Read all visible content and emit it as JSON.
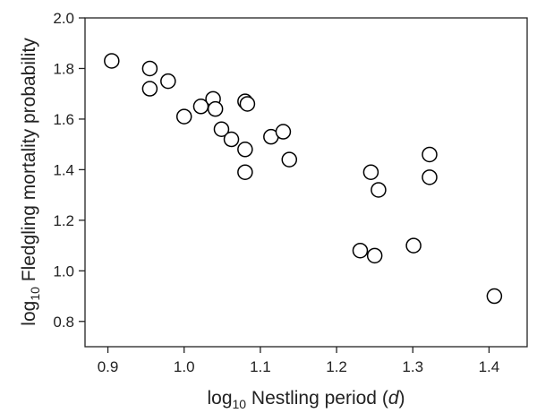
{
  "chart_data": {
    "type": "scatter",
    "xlabel": {
      "prefix": "log",
      "subscript": "10",
      "text": " Nestling period (",
      "italic": "d",
      "suffix": ")"
    },
    "ylabel": {
      "prefix": "log",
      "subscript": "10",
      "text": " Fledgling mortality probability"
    },
    "xlim": [
      0.87,
      1.45
    ],
    "ylim": [
      0.7,
      2.0
    ],
    "xticks": [
      "0.9",
      "1.0",
      "1.1",
      "1.2",
      "1.3",
      "1.4"
    ],
    "yticks": [
      "0.8",
      "1.0",
      "1.2",
      "1.4",
      "1.6",
      "1.8",
      "2.0"
    ],
    "grid": false,
    "marker": "open-circle",
    "colors": {
      "marker_edge": "#000000",
      "marker_fill": "#ffffff",
      "axis": "#222222"
    },
    "points": [
      {
        "x": 0.905,
        "y": 1.83
      },
      {
        "x": 0.955,
        "y": 1.8
      },
      {
        "x": 0.955,
        "y": 1.72
      },
      {
        "x": 0.979,
        "y": 1.75
      },
      {
        "x": 1.0,
        "y": 1.61
      },
      {
        "x": 1.022,
        "y": 1.65
      },
      {
        "x": 1.038,
        "y": 1.68
      },
      {
        "x": 1.041,
        "y": 1.64
      },
      {
        "x": 1.049,
        "y": 1.56
      },
      {
        "x": 1.062,
        "y": 1.52
      },
      {
        "x": 1.08,
        "y": 1.67
      },
      {
        "x": 1.083,
        "y": 1.66
      },
      {
        "x": 1.08,
        "y": 1.48
      },
      {
        "x": 1.08,
        "y": 1.39
      },
      {
        "x": 1.114,
        "y": 1.53
      },
      {
        "x": 1.13,
        "y": 1.55
      },
      {
        "x": 1.138,
        "y": 1.44
      },
      {
        "x": 1.231,
        "y": 1.08
      },
      {
        "x": 1.245,
        "y": 1.39
      },
      {
        "x": 1.25,
        "y": 1.06
      },
      {
        "x": 1.255,
        "y": 1.32
      },
      {
        "x": 1.301,
        "y": 1.1
      },
      {
        "x": 1.322,
        "y": 1.46
      },
      {
        "x": 1.322,
        "y": 1.37
      },
      {
        "x": 1.407,
        "y": 0.9
      }
    ]
  }
}
